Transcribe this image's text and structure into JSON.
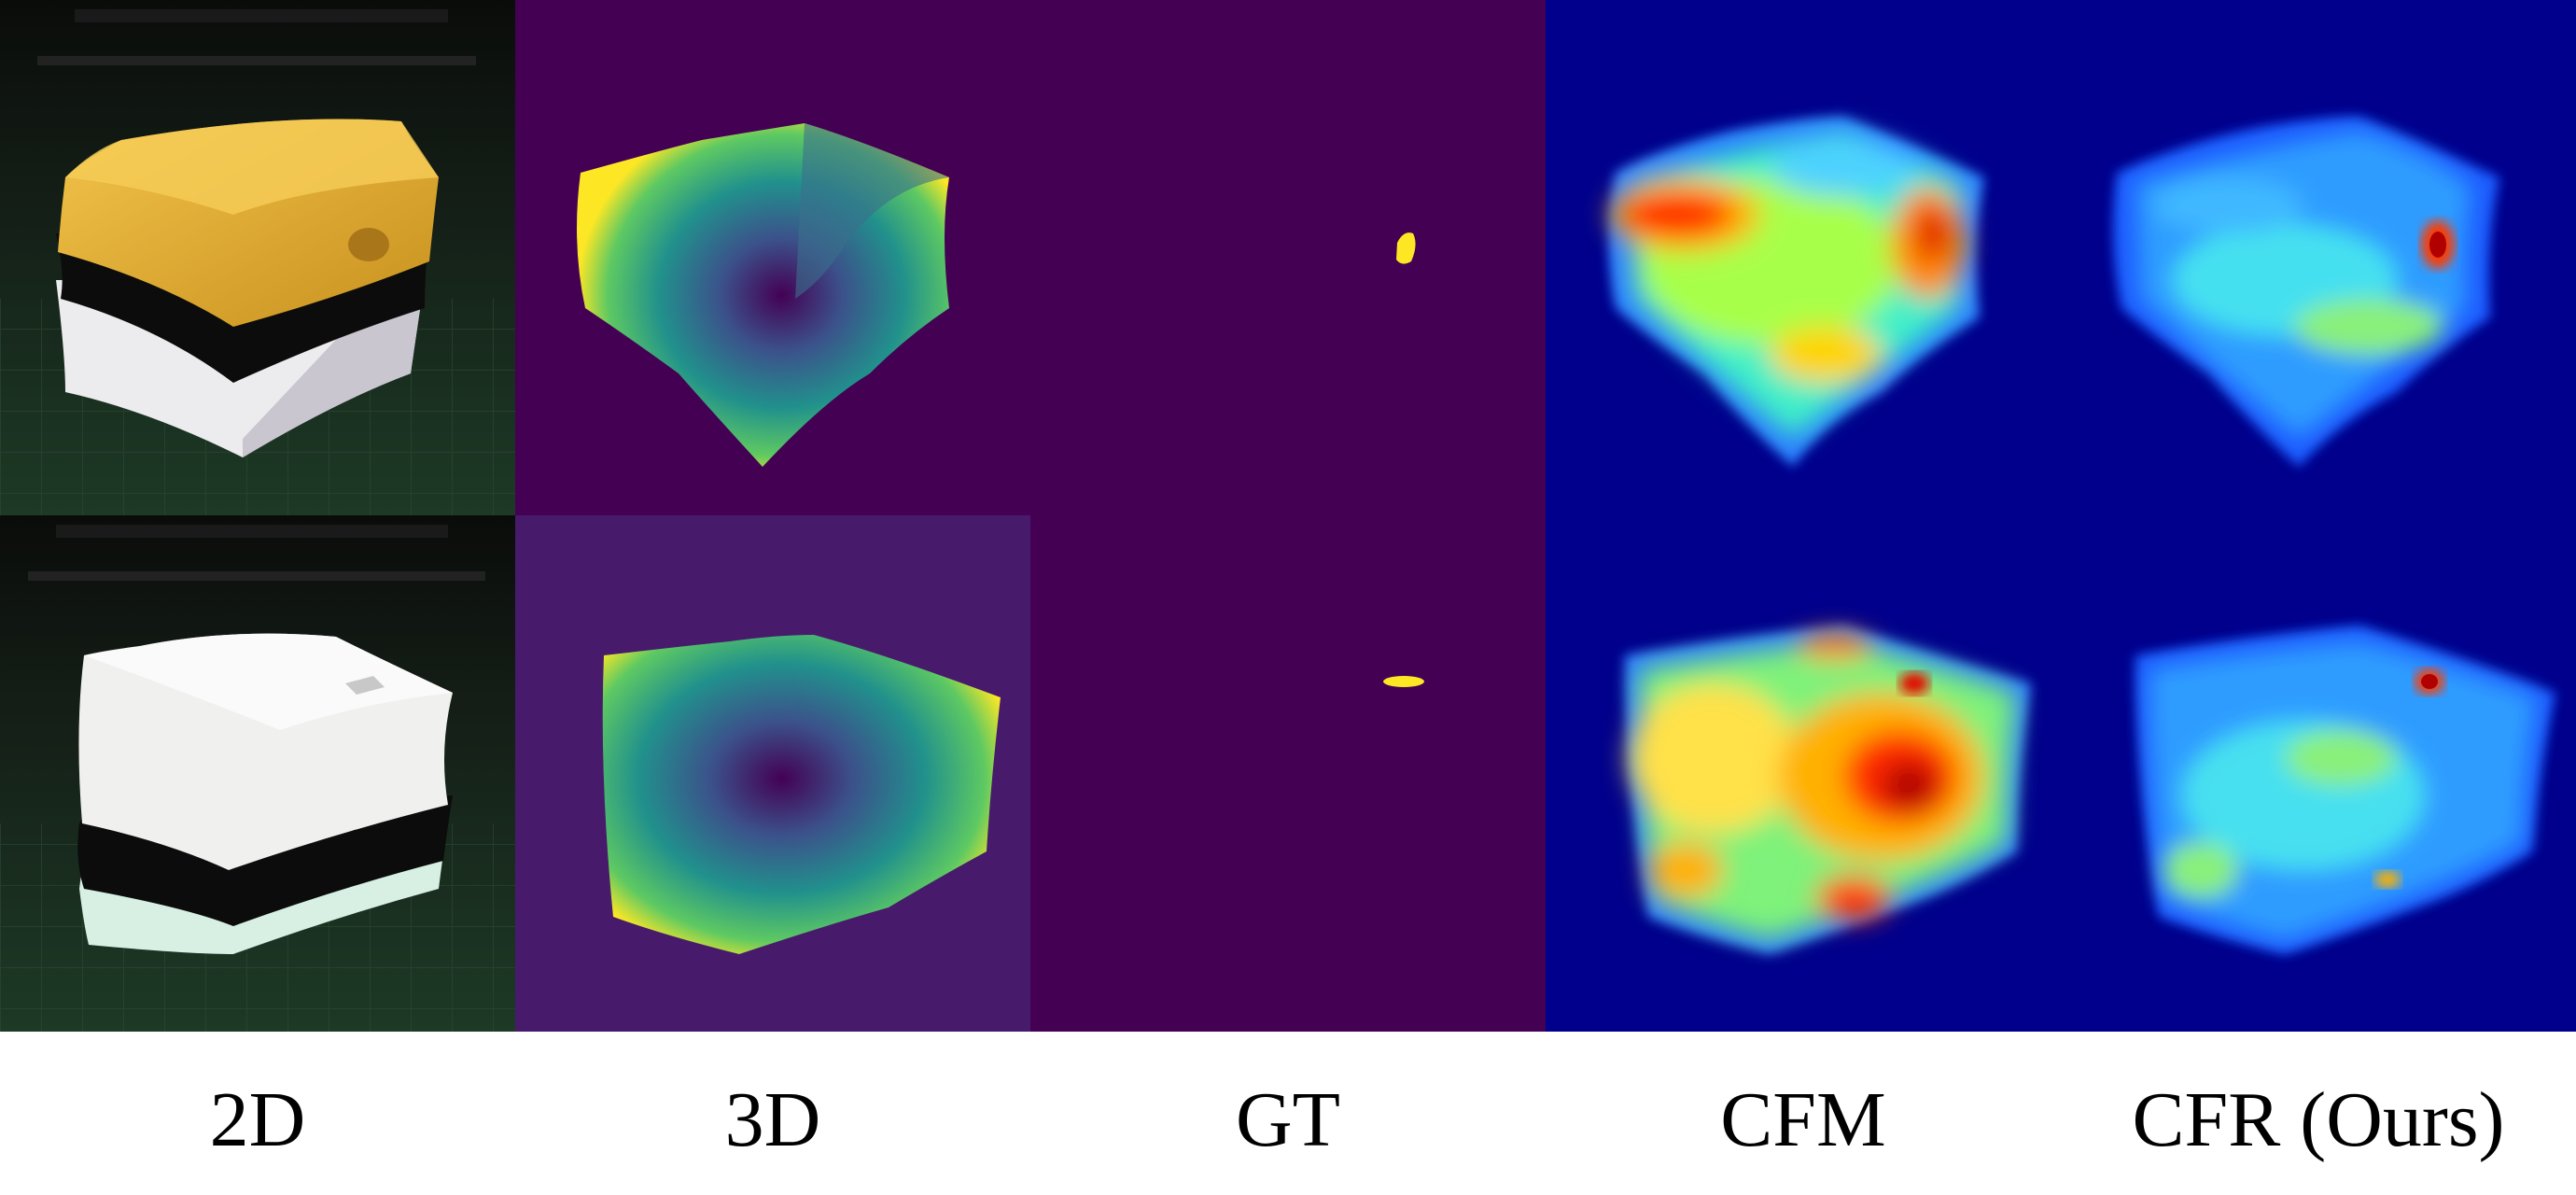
{
  "figure": {
    "columns": [
      {
        "key": "rgb",
        "label": "2D"
      },
      {
        "key": "depth",
        "label": "3D"
      },
      {
        "key": "gt",
        "label": "GT"
      },
      {
        "key": "cfm",
        "label": "CFM"
      },
      {
        "key": "cfr",
        "label": "CFR (Ours)"
      }
    ],
    "rows": [
      {
        "sample": "sample-1",
        "object_top_color": "#e8b830",
        "object_body_color": "#f2f2f2",
        "depth_bg": "#440154",
        "anomaly": "top-right-edge"
      },
      {
        "sample": "sample-2",
        "object_top_color": "#f0f0ee",
        "object_body_color": "#dff2e6",
        "depth_bg": "#481a6c",
        "anomaly": "top-right-center"
      }
    ],
    "colors": {
      "gt_background": "#440154",
      "gt_anomaly": "#fde725",
      "heatmap_background": "#00008c",
      "rgb_background": "#0f1a12"
    }
  }
}
